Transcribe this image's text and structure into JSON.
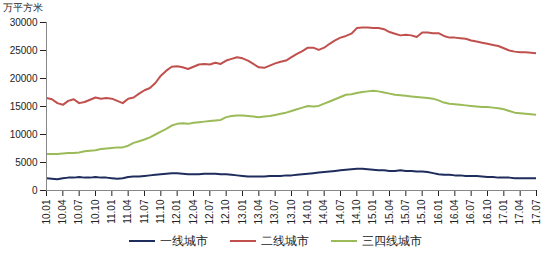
{
  "chart_data": {
    "type": "line",
    "y_label": "万平方米",
    "categories": [
      "10.01",
      null,
      null,
      "10.04",
      null,
      null,
      "10.07",
      null,
      null,
      "10.10",
      null,
      null,
      "11.01",
      null,
      null,
      "11.04",
      null,
      null,
      "11.07",
      null,
      null,
      "11.10",
      null,
      null,
      "12.01",
      null,
      null,
      "12.04",
      null,
      null,
      "12.07",
      null,
      null,
      "12.10",
      null,
      null,
      "13.01",
      null,
      null,
      "13.04",
      null,
      null,
      "13.07",
      null,
      null,
      "13.10",
      null,
      null,
      "14.01",
      null,
      null,
      "14.04",
      null,
      null,
      "14.07",
      null,
      null,
      "14.10",
      null,
      null,
      "15.01",
      null,
      null,
      "15.04",
      null,
      null,
      "15.07",
      null,
      null,
      "15.10",
      null,
      null,
      "16.01",
      null,
      null,
      "16.04",
      null,
      null,
      "16.07",
      null,
      null,
      "16.10",
      null,
      null,
      "17.01",
      null,
      null,
      "17.04",
      null,
      null,
      "17.07"
    ],
    "series": [
      {
        "name": "一线城市",
        "color": "#1f2d5c",
        "values": [
          2200,
          2100,
          2000,
          2200,
          2300,
          2300,
          2400,
          2300,
          2300,
          2400,
          2300,
          2300,
          2200,
          2100,
          2200,
          2400,
          2500,
          2500,
          2600,
          2700,
          2800,
          2900,
          3000,
          3100,
          3100,
          3000,
          2900,
          2900,
          2900,
          3000,
          3000,
          3000,
          2900,
          2900,
          2800,
          2700,
          2600,
          2500,
          2500,
          2500,
          2500,
          2600,
          2600,
          2600,
          2700,
          2700,
          2800,
          2900,
          3000,
          3100,
          3200,
          3300,
          3400,
          3500,
          3600,
          3700,
          3800,
          3900,
          3900,
          3800,
          3700,
          3600,
          3600,
          3500,
          3500,
          3600,
          3500,
          3500,
          3400,
          3400,
          3300,
          3100,
          2900,
          2800,
          2800,
          2700,
          2700,
          2600,
          2600,
          2600,
          2500,
          2400,
          2400,
          2300,
          2300,
          2300,
          2200,
          2200,
          2200,
          2200,
          2200
        ]
      },
      {
        "name": "二线城市",
        "color": "#c0504d",
        "values": [
          16500,
          16300,
          15600,
          15300,
          16000,
          16300,
          15600,
          15800,
          16200,
          16600,
          16400,
          16500,
          16400,
          16000,
          15600,
          16400,
          16600,
          17300,
          17900,
          18300,
          19200,
          20500,
          21400,
          22100,
          22200,
          22000,
          21700,
          22100,
          22500,
          22600,
          22500,
          22800,
          22600,
          23200,
          23500,
          23800,
          23600,
          23200,
          22600,
          22000,
          21900,
          22300,
          22700,
          23000,
          23200,
          23800,
          24400,
          24900,
          25500,
          25500,
          25100,
          25500,
          26200,
          26800,
          27300,
          27600,
          28000,
          29000,
          29100,
          29100,
          29000,
          29000,
          28800,
          28300,
          28000,
          27700,
          27800,
          27700,
          27400,
          28200,
          28200,
          28100,
          28100,
          27600,
          27300,
          27300,
          27200,
          27100,
          26800,
          26600,
          26400,
          26200,
          26000,
          25800,
          25400,
          25000,
          24800,
          24700,
          24700,
          24600,
          24500
        ]
      },
      {
        "name": "三四线城市",
        "color": "#9bbb59",
        "values": [
          6500,
          6500,
          6500,
          6600,
          6700,
          6700,
          6800,
          7000,
          7100,
          7200,
          7400,
          7500,
          7600,
          7700,
          7700,
          8000,
          8500,
          8800,
          9100,
          9500,
          10000,
          10500,
          11000,
          11600,
          11900,
          12000,
          11900,
          12100,
          12200,
          12300,
          12400,
          12500,
          12600,
          13100,
          13300,
          13400,
          13400,
          13300,
          13200,
          13100,
          13200,
          13300,
          13500,
          13700,
          13900,
          14200,
          14500,
          14800,
          15100,
          15000,
          15100,
          15500,
          15900,
          16300,
          16700,
          17100,
          17200,
          17400,
          17600,
          17700,
          17800,
          17700,
          17500,
          17300,
          17100,
          17000,
          16900,
          16800,
          16700,
          16600,
          16500,
          16400,
          16100,
          15700,
          15500,
          15400,
          15300,
          15200,
          15100,
          15000,
          14900,
          14900,
          14800,
          14700,
          14500,
          14200,
          13900,
          13800,
          13700,
          13600,
          13500
        ]
      }
    ],
    "ylim": [
      0,
      30000
    ],
    "yticks": [
      0,
      5000,
      10000,
      15000,
      20000,
      25000,
      30000
    ],
    "grid": false,
    "legend": "bottom"
  }
}
